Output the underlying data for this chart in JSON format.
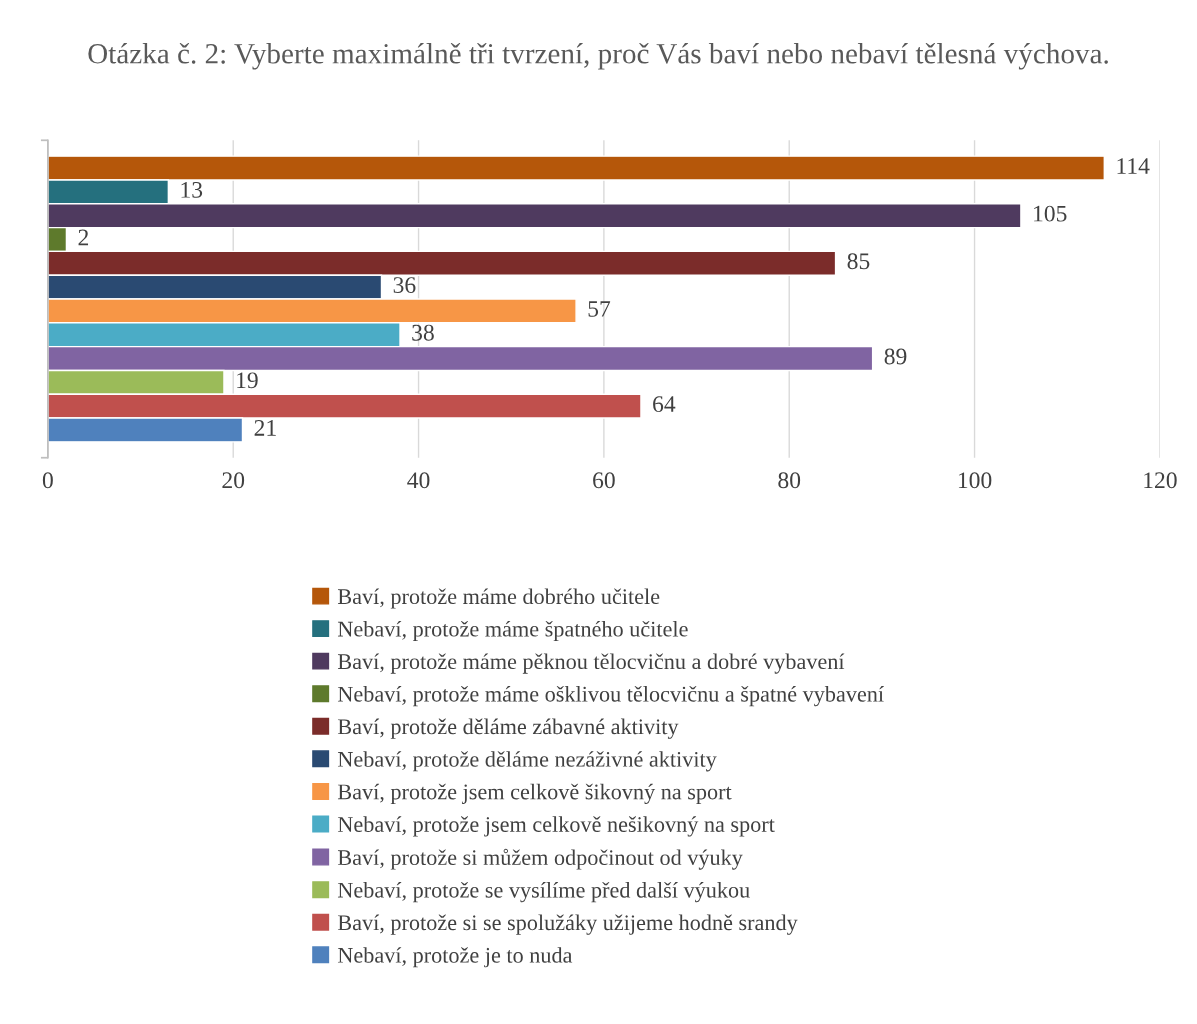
{
  "chart_data": {
    "type": "bar",
    "orientation": "horizontal",
    "title": "Otázka č. 2: Vyberte maximálně tři tvrzení, proč Vás baví nebo nebaví tělesná výchova.",
    "categories": [
      null
    ],
    "series": [
      {
        "name": "Baví, protože máme dobrého učitele",
        "color": "#b5570a",
        "values": [
          114
        ]
      },
      {
        "name": "Nebaví, protože máme špatného učitele",
        "color": "#25707e",
        "values": [
          13
        ]
      },
      {
        "name": "Baví, protože máme pěknou tělocvičnu a dobré vybavení",
        "color": "#4f3a5f",
        "values": [
          105
        ]
      },
      {
        "name": "Nebaví, protože máme ošklivou tělocvičnu a špatné vybavení",
        "color": "#5e7a2c",
        "values": [
          2
        ]
      },
      {
        "name": "Baví, protože děláme zábavné aktivity",
        "color": "#7b2c2a",
        "values": [
          85
        ]
      },
      {
        "name": "Nebaví, protože děláme nezáživné aktivity",
        "color": "#2a4a72",
        "values": [
          36
        ]
      },
      {
        "name": "Baví, protože jsem celkově šikovný na sport",
        "color": "#f79646",
        "values": [
          57
        ]
      },
      {
        "name": "Nebaví, protože jsem celkově nešikovný na sport",
        "color": "#4bacc6",
        "values": [
          38
        ]
      },
      {
        "name": "Baví, protože si můžem odpočinout od výuky",
        "color": "#8064a2",
        "values": [
          89
        ]
      },
      {
        "name": "Nebaví, protože se vysílíme před další výukou",
        "color": "#9bbb59",
        "values": [
          19
        ]
      },
      {
        "name": "Baví, protože si se spolužáky užijeme hodně srandy",
        "color": "#c0504d",
        "values": [
          64
        ]
      },
      {
        "name": "Nebaví, protože je to nuda",
        "color": "#4f81bd",
        "values": [
          21
        ]
      }
    ],
    "xlim": [
      0,
      120
    ],
    "xticks": [
      0,
      20,
      40,
      60,
      80,
      100,
      120
    ],
    "grid": "x",
    "legend": "bottom",
    "data_labels": true,
    "tick_labels": "x"
  }
}
